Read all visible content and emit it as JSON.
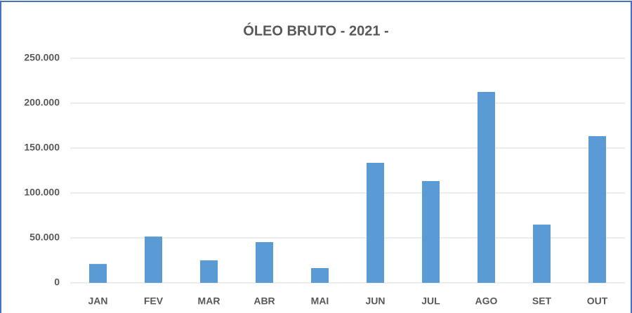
{
  "chart_data": {
    "type": "bar",
    "title": "ÓLEO BRUTO - 2021 -",
    "categories": [
      "JAN",
      "FEV",
      "MAR",
      "ABR",
      "MAI",
      "JUN",
      "JUL",
      "AGO",
      "SET",
      "OUT"
    ],
    "values": [
      21000,
      51500,
      25000,
      45300,
      16400,
      133600,
      113300,
      212500,
      64800,
      163300
    ],
    "color": "#5b9bd5",
    "ylim": [
      0,
      250000
    ],
    "yticks": [
      0,
      {
        "value": 50000,
        "label": "50.000"
      },
      {
        "value": 100000,
        "label": "100.000"
      },
      {
        "value": 150000,
        "label": "150.000"
      },
      {
        "value": 200000,
        "label": "200.000"
      },
      {
        "value": 250000,
        "label": "250.000"
      }
    ],
    "grid": true
  }
}
